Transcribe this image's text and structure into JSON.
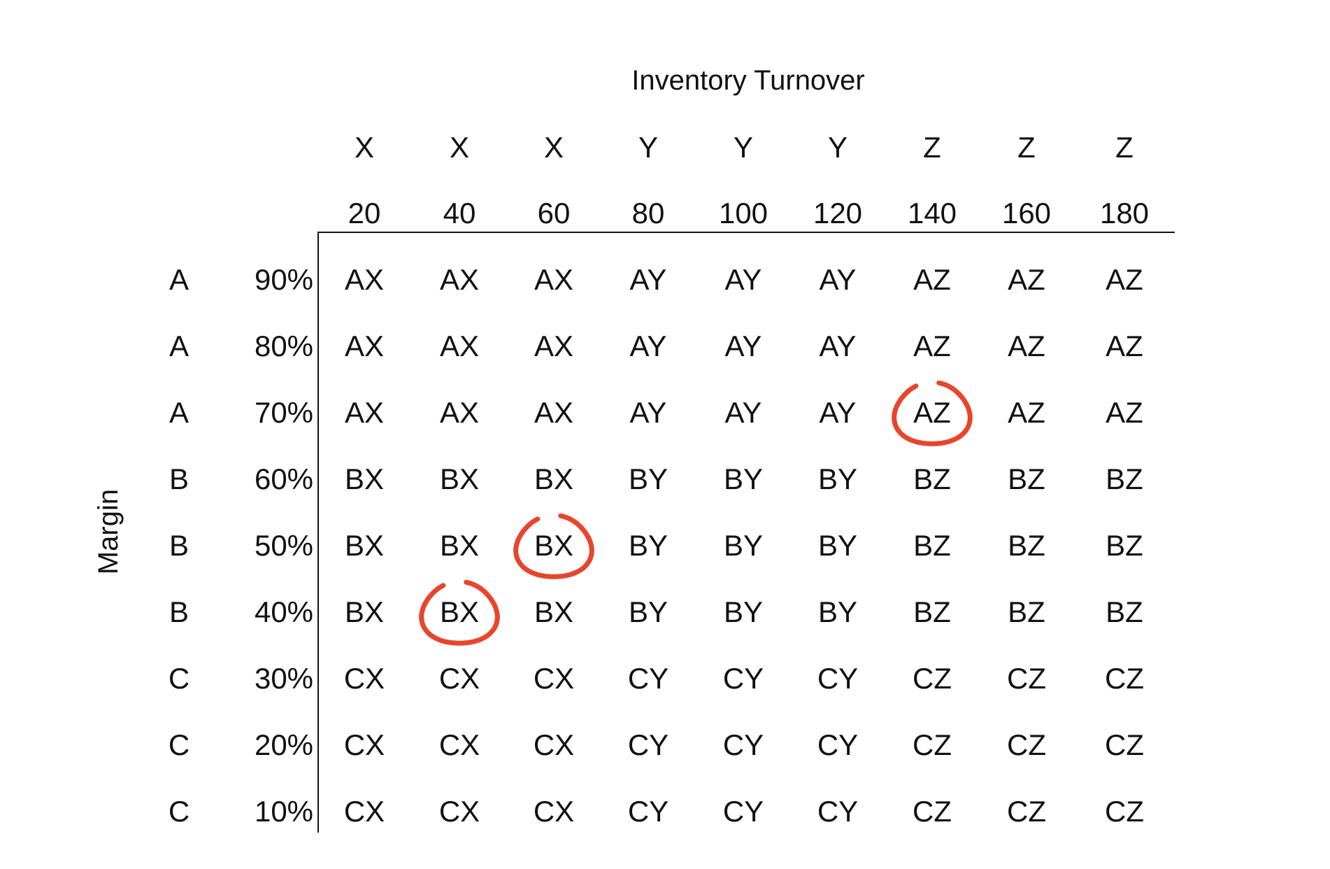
{
  "x_axis_title": "Inventory Turnover",
  "y_axis_title": "Margin",
  "columns": [
    {
      "letter": "X",
      "value": "20"
    },
    {
      "letter": "X",
      "value": "40"
    },
    {
      "letter": "X",
      "value": "60"
    },
    {
      "letter": "Y",
      "value": "80"
    },
    {
      "letter": "Y",
      "value": "100"
    },
    {
      "letter": "Y",
      "value": "120"
    },
    {
      "letter": "Z",
      "value": "140"
    },
    {
      "letter": "Z",
      "value": "160"
    },
    {
      "letter": "Z",
      "value": "180"
    }
  ],
  "rows": [
    {
      "letter": "A",
      "pct": "90%",
      "cells": [
        "AX",
        "AX",
        "AX",
        "AY",
        "AY",
        "AY",
        "AZ",
        "AZ",
        "AZ"
      ]
    },
    {
      "letter": "A",
      "pct": "80%",
      "cells": [
        "AX",
        "AX",
        "AX",
        "AY",
        "AY",
        "AY",
        "AZ",
        "AZ",
        "AZ"
      ]
    },
    {
      "letter": "A",
      "pct": "70%",
      "cells": [
        "AX",
        "AX",
        "AX",
        "AY",
        "AY",
        "AY",
        "AZ",
        "AZ",
        "AZ"
      ]
    },
    {
      "letter": "B",
      "pct": "60%",
      "cells": [
        "BX",
        "BX",
        "BX",
        "BY",
        "BY",
        "BY",
        "BZ",
        "BZ",
        "BZ"
      ]
    },
    {
      "letter": "B",
      "pct": "50%",
      "cells": [
        "BX",
        "BX",
        "BX",
        "BY",
        "BY",
        "BY",
        "BZ",
        "BZ",
        "BZ"
      ]
    },
    {
      "letter": "B",
      "pct": "40%",
      "cells": [
        "BX",
        "BX",
        "BX",
        "BY",
        "BY",
        "BY",
        "BZ",
        "BZ",
        "BZ"
      ]
    },
    {
      "letter": "C",
      "pct": "30%",
      "cells": [
        "CX",
        "CX",
        "CX",
        "CY",
        "CY",
        "CY",
        "CZ",
        "CZ",
        "CZ"
      ]
    },
    {
      "letter": "C",
      "pct": "20%",
      "cells": [
        "CX",
        "CX",
        "CX",
        "CY",
        "CY",
        "CY",
        "CZ",
        "CZ",
        "CZ"
      ]
    },
    {
      "letter": "C",
      "pct": "10%",
      "cells": [
        "CX",
        "CX",
        "CX",
        "CY",
        "CY",
        "CY",
        "CZ",
        "CZ",
        "CZ"
      ]
    }
  ],
  "highlighted_cells": [
    {
      "row": 2,
      "col": 6
    },
    {
      "row": 4,
      "col": 2
    },
    {
      "row": 5,
      "col": 1
    }
  ],
  "highlight_color": "#e8452c"
}
